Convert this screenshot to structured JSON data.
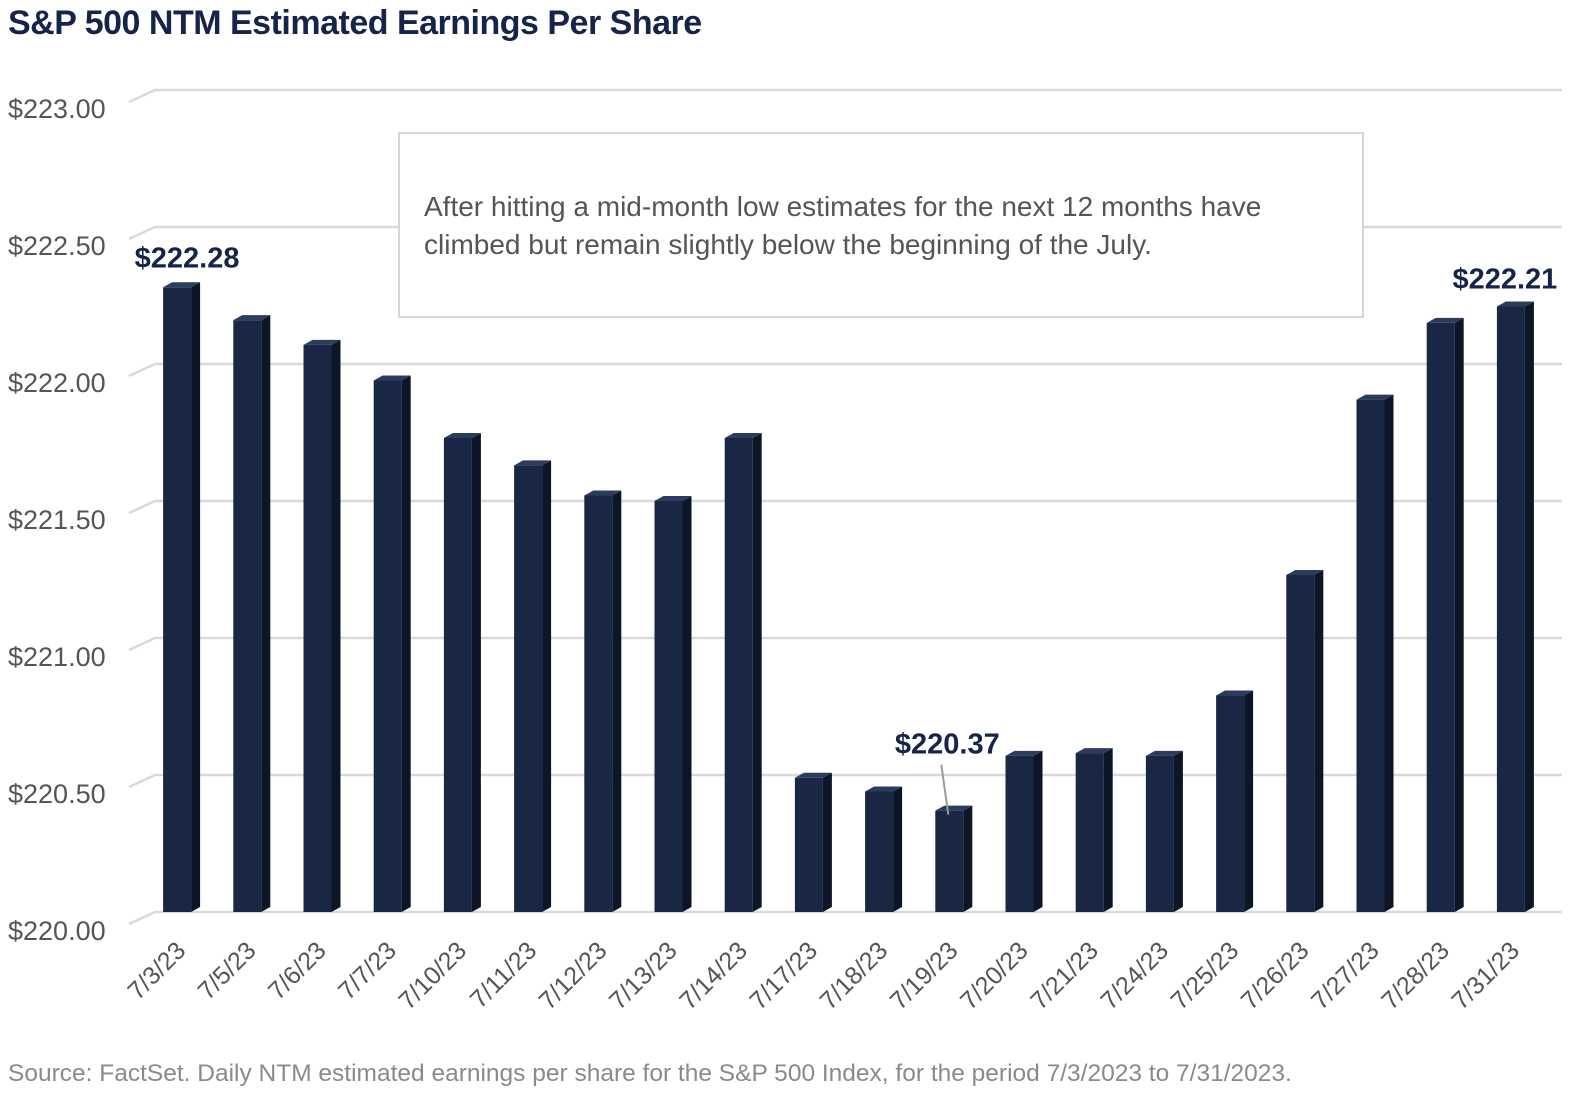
{
  "title": "S&P 500 NTM Estimated Earnings Per Share",
  "annotation": "After hitting a mid-month low estimates for the next 12 months have climbed but remain slightly below the beginning of the July.",
  "source": "Source: FactSet. Daily NTM estimated earnings per share for the S&P 500 Index, for the period 7/3/2023 to 7/31/2023.",
  "colors": {
    "bar_front": "#1a2744",
    "bar_side": "#0d1528",
    "bar_top": "#2c3b5e",
    "grid": "#d9d9d9",
    "label": "#17244a",
    "axis_text": "#555555"
  },
  "chart_data": {
    "type": "bar",
    "title": "S&P 500 NTM Estimated Earnings Per Share",
    "xlabel": "",
    "ylabel": "",
    "ylim": [
      220.0,
      223.0
    ],
    "yticks": [
      220.0,
      220.5,
      221.0,
      221.5,
      222.0,
      222.5,
      223.0
    ],
    "ytick_labels": [
      "$220.00",
      "$220.50",
      "$221.00",
      "$221.50",
      "$222.00",
      "$222.50",
      "$223.00"
    ],
    "grid": true,
    "legend": "none",
    "categories": [
      "7/3/23",
      "7/5/23",
      "7/6/23",
      "7/7/23",
      "7/10/23",
      "7/11/23",
      "7/12/23",
      "7/13/23",
      "7/14/23",
      "7/17/23",
      "7/18/23",
      "7/19/23",
      "7/20/23",
      "7/21/23",
      "7/24/23",
      "7/25/23",
      "7/26/23",
      "7/27/23",
      "7/28/23",
      "7/31/23"
    ],
    "values": [
      222.28,
      222.16,
      222.07,
      221.94,
      221.73,
      221.63,
      221.52,
      221.5,
      221.73,
      220.49,
      220.44,
      220.37,
      220.57,
      220.58,
      220.57,
      220.79,
      221.23,
      221.87,
      222.15,
      222.21
    ],
    "data_labels": [
      {
        "index": 0,
        "text": "$222.28"
      },
      {
        "index": 11,
        "text": "$220.37"
      },
      {
        "index": 19,
        "text": "$222.21"
      }
    ]
  }
}
